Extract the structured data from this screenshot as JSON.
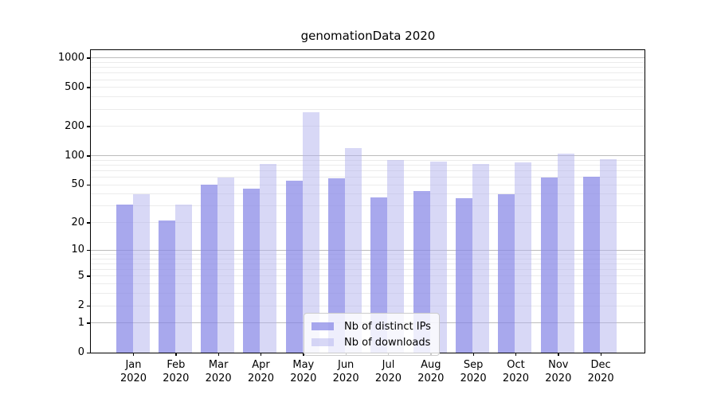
{
  "figure_title": "genomationData 2020",
  "chart_data": {
    "type": "bar",
    "title": "genomationData 2020",
    "categories": [
      "Jan 2020",
      "Feb 2020",
      "Mar 2020",
      "Apr 2020",
      "May 2020",
      "Jun 2020",
      "Jul 2020",
      "Aug 2020",
      "Sep 2020",
      "Oct 2020",
      "Nov 2020",
      "Dec 2020"
    ],
    "series": [
      {
        "name": "Nb of distinct IPs",
        "color": "rgba(134,134,230,0.72)",
        "color_hex": "#a9a9ef",
        "values": [
          31,
          21,
          50,
          46,
          55,
          59,
          37,
          43,
          36,
          40,
          60,
          61
        ]
      },
      {
        "name": "Nb of downloads",
        "color": "rgba(177,177,237,0.5)",
        "color_hex": "#d9d9f7",
        "values": [
          40,
          31,
          60,
          83,
          280,
          120,
          91,
          87,
          82,
          86,
          105,
          93
        ]
      }
    ],
    "yscale": "log1p",
    "yticks": [
      0,
      1,
      2,
      5,
      10,
      20,
      50,
      100,
      200,
      500,
      1000
    ],
    "ylim": [
      0,
      1200
    ],
    "xlabel": "",
    "ylabel": "",
    "grid": true,
    "gridline_major_color": "#bcbcbc",
    "gridline_minor_color": "#ebebeb",
    "legend_position": "lower center"
  },
  "legend": {
    "items": [
      {
        "label": "Nb of distinct IPs"
      },
      {
        "label": "Nb of downloads"
      }
    ]
  }
}
